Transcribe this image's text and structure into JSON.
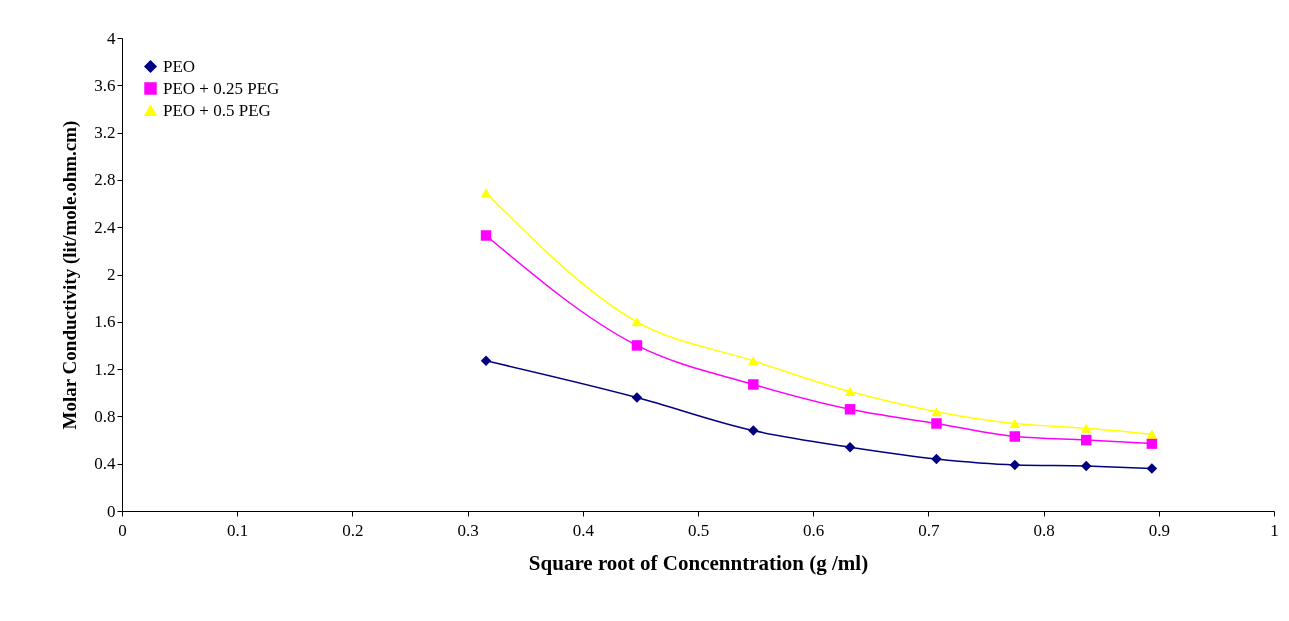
{
  "chart_data": {
    "type": "line",
    "xlabel": "Square root of Concenntration (g /ml)",
    "ylabel": "Molar Conductivity  (lit/mole.ohm.cm)",
    "x": [
      0.316,
      0.447,
      0.548,
      0.632,
      0.707,
      0.775,
      0.837,
      0.894
    ],
    "series": [
      {
        "name": "PEO",
        "color": "#000080",
        "marker": "diamond",
        "values": [
          1.27,
          0.96,
          0.68,
          0.54,
          0.44,
          0.39,
          0.38,
          0.36
        ]
      },
      {
        "name": "PEO + 0.25 PEG",
        "color": "#ff00ff",
        "marker": "square",
        "values": [
          2.33,
          1.4,
          1.07,
          0.86,
          0.74,
          0.63,
          0.6,
          0.57
        ]
      },
      {
        "name": "PEO + 0.5 PEG",
        "color": "#ffff00",
        "marker": "triangle",
        "values": [
          2.69,
          1.6,
          1.27,
          1.01,
          0.84,
          0.74,
          0.7,
          0.65
        ]
      }
    ],
    "xlim": [
      0,
      1
    ],
    "xticks": [
      0,
      0.1,
      0.2,
      0.3,
      0.4,
      0.5,
      0.6,
      0.7,
      0.8,
      0.9,
      1
    ],
    "ylim": [
      0,
      4
    ],
    "yticks": [
      0,
      0.4,
      0.8,
      1.2,
      1.6,
      2,
      2.4,
      2.8,
      3.2,
      3.6,
      4
    ],
    "grid": false,
    "legend": "top left",
    "line_style": "solid"
  }
}
